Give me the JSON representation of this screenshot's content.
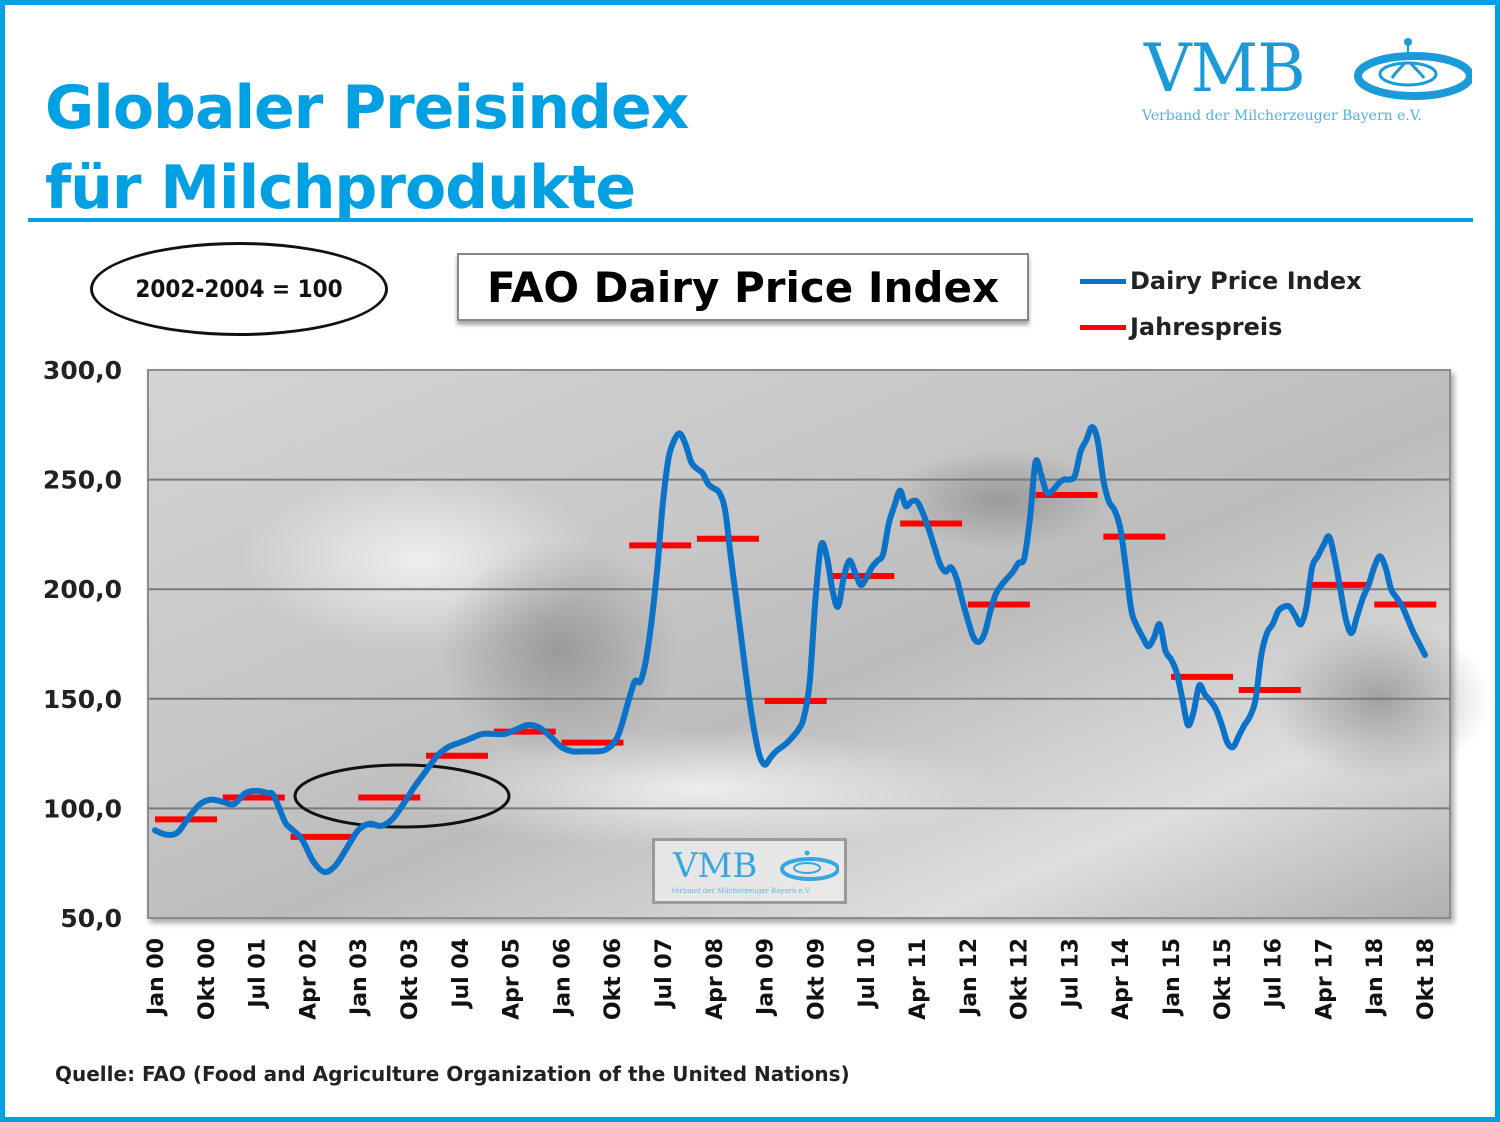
{
  "header": {
    "title_line1": "Globaler Preisindex",
    "title_line2": "für Milchprodukte",
    "brand_color": "#00a0e3"
  },
  "logo": {
    "name": "VMB",
    "subtitle": "Verband der Milcherzeuger Bayern e.V.",
    "icon": "milk-splash-icon"
  },
  "watermark": {
    "name": "VMB",
    "subtitle": "Verband der Milcherzeuger Bayern e.V."
  },
  "base_note": "2002-2004 = 100",
  "source": "Quelle: FAO (Food and Agriculture Organization of the United Nations)",
  "chart_data": {
    "type": "line",
    "title": "FAO Dairy Price Index",
    "xlabel": "",
    "ylabel": "",
    "ylim": [
      50,
      300
    ],
    "yticks": [
      50,
      100,
      150,
      200,
      250,
      300
    ],
    "ytick_labels": [
      "50,0",
      "100,0",
      "150,0",
      "200,0",
      "250,0",
      "300,0"
    ],
    "grid": true,
    "legend_position": "top-right",
    "x_range_months": [
      "Jan 00",
      "Okt 18"
    ],
    "xtick_labels": [
      "Jan 00",
      "Okt 00",
      "Jul 01",
      "Apr 02",
      "Jan 03",
      "Okt 03",
      "Jul 04",
      "Apr 05",
      "Jan 06",
      "Okt 06",
      "Jul 07",
      "Apr 08",
      "Jan 09",
      "Okt 09",
      "Jul 10",
      "Apr 11",
      "Jan 12",
      "Okt 12",
      "Jul 13",
      "Apr 14",
      "Jan 15",
      "Okt 15",
      "Jul 16",
      "Apr 17",
      "Jan 18",
      "Okt 18"
    ],
    "series": [
      {
        "name": "Dairy Price Index",
        "color": "#0a72c8",
        "kind": "monthly-line",
        "points": [
          [
            "2000-01",
            90
          ],
          [
            "2000-03",
            88
          ],
          [
            "2000-05",
            89
          ],
          [
            "2000-07",
            96
          ],
          [
            "2000-09",
            102
          ],
          [
            "2000-11",
            104
          ],
          [
            "2001-01",
            103
          ],
          [
            "2001-03",
            102
          ],
          [
            "2001-05",
            107
          ],
          [
            "2001-07",
            108
          ],
          [
            "2001-09",
            107
          ],
          [
            "2001-10",
            106
          ],
          [
            "2001-12",
            94
          ],
          [
            "2002-01",
            91
          ],
          [
            "2002-03",
            86
          ],
          [
            "2002-05",
            76
          ],
          [
            "2002-07",
            71
          ],
          [
            "2002-09",
            74
          ],
          [
            "2002-11",
            82
          ],
          [
            "2003-01",
            90
          ],
          [
            "2003-03",
            93
          ],
          [
            "2003-05",
            92
          ],
          [
            "2003-07",
            95
          ],
          [
            "2003-09",
            102
          ],
          [
            "2003-11",
            110
          ],
          [
            "2004-01",
            117
          ],
          [
            "2004-03",
            124
          ],
          [
            "2004-05",
            128
          ],
          [
            "2004-07",
            130
          ],
          [
            "2004-09",
            132
          ],
          [
            "2004-11",
            134
          ],
          [
            "2005-01",
            134
          ],
          [
            "2005-03",
            134
          ],
          [
            "2005-05",
            136
          ],
          [
            "2005-07",
            138
          ],
          [
            "2005-09",
            137
          ],
          [
            "2005-11",
            133
          ],
          [
            "2006-01",
            128
          ],
          [
            "2006-03",
            126
          ],
          [
            "2006-05",
            126
          ],
          [
            "2006-07",
            126
          ],
          [
            "2006-09",
            127
          ],
          [
            "2006-11",
            133
          ],
          [
            "2007-01",
            150
          ],
          [
            "2007-02",
            158
          ],
          [
            "2007-03",
            158
          ],
          [
            "2007-04",
            168
          ],
          [
            "2007-05",
            186
          ],
          [
            "2007-06",
            210
          ],
          [
            "2007-07",
            240
          ],
          [
            "2007-08",
            260
          ],
          [
            "2007-09",
            268
          ],
          [
            "2007-10",
            271
          ],
          [
            "2007-11",
            266
          ],
          [
            "2007-12",
            258
          ],
          [
            "2008-01",
            255
          ],
          [
            "2008-02",
            253
          ],
          [
            "2008-03",
            248
          ],
          [
            "2008-04",
            246
          ],
          [
            "2008-05",
            244
          ],
          [
            "2008-06",
            236
          ],
          [
            "2008-07",
            215
          ],
          [
            "2008-08",
            195
          ],
          [
            "2008-09",
            175
          ],
          [
            "2008-10",
            155
          ],
          [
            "2008-11",
            138
          ],
          [
            "2008-12",
            125
          ],
          [
            "2009-01",
            120
          ],
          [
            "2009-02",
            123
          ],
          [
            "2009-03",
            126
          ],
          [
            "2009-05",
            130
          ],
          [
            "2009-07",
            136
          ],
          [
            "2009-08",
            142
          ],
          [
            "2009-09",
            158
          ],
          [
            "2009-10",
            195
          ],
          [
            "2009-11",
            220
          ],
          [
            "2009-12",
            215
          ],
          [
            "2010-01",
            200
          ],
          [
            "2010-02",
            192
          ],
          [
            "2010-03",
            205
          ],
          [
            "2010-04",
            213
          ],
          [
            "2010-05",
            208
          ],
          [
            "2010-06",
            202
          ],
          [
            "2010-07",
            205
          ],
          [
            "2010-08",
            210
          ],
          [
            "2010-09",
            213
          ],
          [
            "2010-10",
            216
          ],
          [
            "2010-11",
            230
          ],
          [
            "2010-12",
            238
          ],
          [
            "2011-01",
            245
          ],
          [
            "2011-02",
            238
          ],
          [
            "2011-03",
            240
          ],
          [
            "2011-04",
            240
          ],
          [
            "2011-05",
            235
          ],
          [
            "2011-06",
            228
          ],
          [
            "2011-07",
            220
          ],
          [
            "2011-08",
            212
          ],
          [
            "2011-09",
            208
          ],
          [
            "2011-10",
            210
          ],
          [
            "2011-11",
            205
          ],
          [
            "2011-12",
            195
          ],
          [
            "2012-01",
            186
          ],
          [
            "2012-02",
            178
          ],
          [
            "2012-03",
            176
          ],
          [
            "2012-04",
            180
          ],
          [
            "2012-05",
            190
          ],
          [
            "2012-06",
            198
          ],
          [
            "2012-07",
            202
          ],
          [
            "2012-08",
            205
          ],
          [
            "2012-09",
            208
          ],
          [
            "2012-10",
            212
          ],
          [
            "2012-11",
            214
          ],
          [
            "2012-12",
            232
          ],
          [
            "2013-01",
            258
          ],
          [
            "2013-02",
            252
          ],
          [
            "2013-03",
            244
          ],
          [
            "2013-04",
            245
          ],
          [
            "2013-05",
            248
          ],
          [
            "2013-06",
            250
          ],
          [
            "2013-07",
            250
          ],
          [
            "2013-08",
            252
          ],
          [
            "2013-09",
            263
          ],
          [
            "2013-10",
            268
          ],
          [
            "2013-11",
            274
          ],
          [
            "2013-12",
            268
          ],
          [
            "2014-01",
            250
          ],
          [
            "2014-02",
            240
          ],
          [
            "2014-03",
            236
          ],
          [
            "2014-04",
            228
          ],
          [
            "2014-05",
            210
          ],
          [
            "2014-06",
            190
          ],
          [
            "2014-07",
            183
          ],
          [
            "2014-08",
            178
          ],
          [
            "2014-09",
            174
          ],
          [
            "2014-10",
            178
          ],
          [
            "2014-11",
            184
          ],
          [
            "2014-12",
            172
          ],
          [
            "2015-01",
            168
          ],
          [
            "2015-02",
            162
          ],
          [
            "2015-03",
            150
          ],
          [
            "2015-04",
            138
          ],
          [
            "2015-05",
            144
          ],
          [
            "2015-06",
            156
          ],
          [
            "2015-07",
            152
          ],
          [
            "2015-08",
            149
          ],
          [
            "2015-09",
            145
          ],
          [
            "2015-10",
            138
          ],
          [
            "2015-11",
            130
          ],
          [
            "2015-12",
            128
          ],
          [
            "2016-01",
            133
          ],
          [
            "2016-02",
            138
          ],
          [
            "2016-03",
            142
          ],
          [
            "2016-04",
            150
          ],
          [
            "2016-05",
            170
          ],
          [
            "2016-06",
            180
          ],
          [
            "2016-07",
            184
          ],
          [
            "2016-08",
            190
          ],
          [
            "2016-09",
            192
          ],
          [
            "2016-10",
            192
          ],
          [
            "2016-11",
            188
          ],
          [
            "2016-12",
            184
          ],
          [
            "2017-01",
            192
          ],
          [
            "2017-02",
            210
          ],
          [
            "2017-03",
            215
          ],
          [
            "2017-04",
            220
          ],
          [
            "2017-05",
            224
          ],
          [
            "2017-06",
            214
          ],
          [
            "2017-07",
            200
          ],
          [
            "2017-08",
            186
          ],
          [
            "2017-09",
            180
          ],
          [
            "2017-10",
            188
          ],
          [
            "2017-11",
            196
          ],
          [
            "2017-12",
            202
          ],
          [
            "2018-01",
            210
          ],
          [
            "2018-02",
            215
          ],
          [
            "2018-03",
            210
          ],
          [
            "2018-04",
            200
          ],
          [
            "2018-05",
            196
          ],
          [
            "2018-06",
            192
          ],
          [
            "2018-07",
            186
          ],
          [
            "2018-08",
            180
          ],
          [
            "2018-09",
            175
          ],
          [
            "2018-10",
            170
          ]
        ]
      },
      {
        "name": "Jahrespreis",
        "color": "#ff0000",
        "kind": "annual-bars",
        "points": [
          [
            2000,
            95
          ],
          [
            2001,
            105
          ],
          [
            2002,
            87
          ],
          [
            2003,
            105
          ],
          [
            2004,
            124
          ],
          [
            2005,
            135
          ],
          [
            2006,
            130
          ],
          [
            2007,
            220
          ],
          [
            2008,
            223
          ],
          [
            2009,
            149
          ],
          [
            2010,
            206
          ],
          [
            2011,
            230
          ],
          [
            2012,
            193
          ],
          [
            2013,
            243
          ],
          [
            2014,
            224
          ],
          [
            2015,
            160
          ],
          [
            2016,
            154
          ],
          [
            2017,
            202
          ],
          [
            2018,
            193
          ]
        ]
      }
    ],
    "annotations": [
      {
        "type": "ellipse",
        "label": "base period highlight",
        "x_from": "2002-03",
        "x_to": "2005-01",
        "y_center": 105
      },
      {
        "type": "ellipse",
        "label": "2002-2004 = 100"
      }
    ]
  }
}
